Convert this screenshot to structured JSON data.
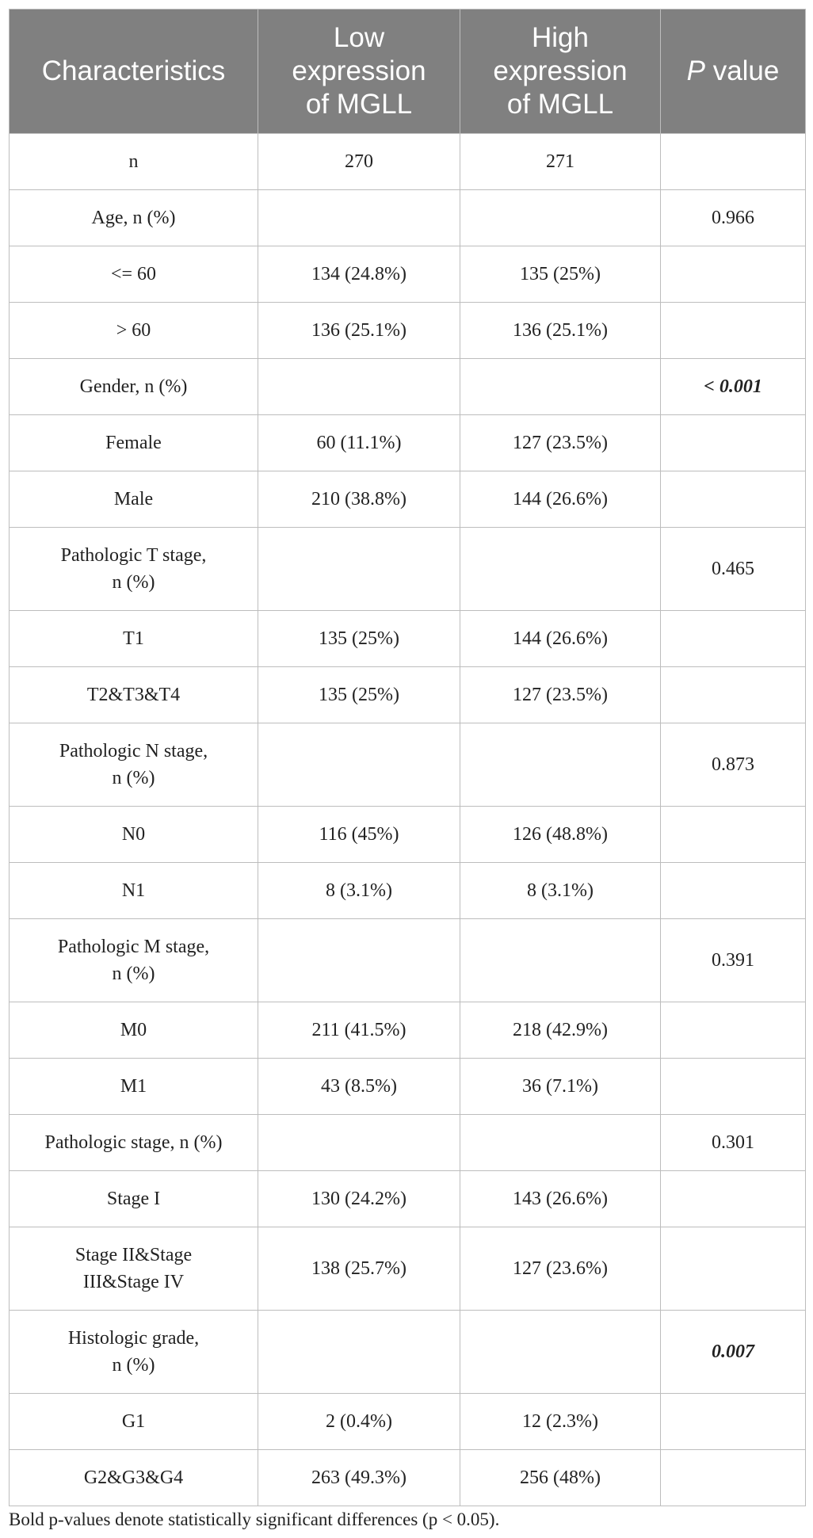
{
  "table": {
    "header": [
      "Characteristics",
      "Low expression of MGLL",
      "High expression of MGLL",
      "P value"
    ],
    "rows": [
      [
        "n",
        "270",
        "271",
        null
      ],
      [
        "Age, n (%)",
        null,
        null,
        "0.966"
      ],
      [
        "<= 60",
        "134 (24.8%)",
        "135 (25%)",
        null
      ],
      [
        "> 60",
        "136 (25.1%)",
        "136 (25.1%)",
        null
      ],
      [
        "Gender, n (%)",
        null,
        null,
        {
          "text": "< 0.001",
          "bold": true
        }
      ],
      [
        "Female",
        "60 (11.1%)",
        "127 (23.5%)",
        null
      ],
      [
        "Male",
        "210 (38.8%)",
        "144 (26.6%)",
        null
      ],
      [
        "Pathologic T stage,\nn (%)",
        null,
        null,
        "0.465"
      ],
      [
        "T1",
        "135 (25%)",
        "144 (26.6%)",
        null
      ],
      [
        "T2&T3&T4",
        "135 (25%)",
        "127 (23.5%)",
        null
      ],
      [
        "Pathologic N stage,\nn (%)",
        null,
        null,
        "0.873"
      ],
      [
        "N0",
        "116 (45%)",
        "126 (48.8%)",
        null
      ],
      [
        "N1",
        "8 (3.1%)",
        "8 (3.1%)",
        null
      ],
      [
        "Pathologic M stage,\nn (%)",
        null,
        null,
        "0.391"
      ],
      [
        "M0",
        "211 (41.5%)",
        "218 (42.9%)",
        null
      ],
      [
        "M1",
        "43 (8.5%)",
        "36 (7.1%)",
        null
      ],
      [
        "Pathologic stage, n (%)",
        null,
        null,
        "0.301"
      ],
      [
        "Stage I",
        "130 (24.2%)",
        "143 (26.6%)",
        null
      ],
      [
        "Stage II&Stage\nIII&Stage IV",
        "138 (25.7%)",
        "127 (23.6%)",
        null
      ],
      [
        "Histologic grade,\nn (%)",
        null,
        null,
        {
          "text": "0.007",
          "bold": true
        }
      ],
      [
        "G1",
        "2 (0.4%)",
        "12 (2.3%)",
        null
      ],
      [
        "G2&G3&G4",
        "263 (49.3%)",
        "256 (48%)",
        null
      ]
    ]
  },
  "footnote": "Bold p-values denote statistically significant differences (p < 0.05)."
}
